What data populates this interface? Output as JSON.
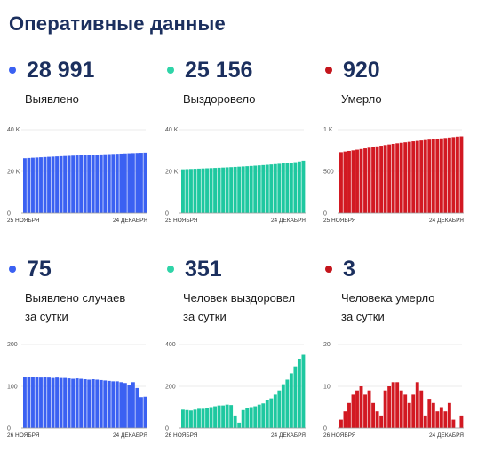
{
  "title": "Оперативные данные",
  "colors": {
    "blue": "#3b61f2",
    "teal": "#1ec8a0",
    "red": "#d21922"
  },
  "panels": [
    {
      "value": "28 991",
      "label": [
        "Выявлено"
      ],
      "color": "#3b61f2",
      "dot": "#3b61f2"
    },
    {
      "value": "25 156",
      "label": [
        "Выздоровело"
      ],
      "color": "#1ec8a0",
      "dot": "#2fd4a8"
    },
    {
      "value": "920",
      "label": [
        "Умерло"
      ],
      "color": "#d21922",
      "dot": "#c4151c"
    },
    {
      "value": "75",
      "label": [
        "Выявлено случаев",
        "за сутки"
      ],
      "color": "#3b61f2",
      "dot": "#3b61f2"
    },
    {
      "value": "351",
      "label": [
        "Человек выздоровел",
        "за сутки"
      ],
      "color": "#1ec8a0",
      "dot": "#2fd4a8"
    },
    {
      "value": "3",
      "label": [
        "Человека умерло",
        "за сутки"
      ],
      "color": "#d21922",
      "dot": "#c4151c"
    }
  ],
  "chart_data": [
    {
      "type": "bar",
      "yticks": [
        "40 K",
        "20 K",
        "0"
      ],
      "ylim": [
        0,
        40000
      ],
      "x_start": "25 НОЯБРЯ",
      "x_end": "24 ДЕКАБРЯ",
      "values": [
        26300,
        26420,
        26540,
        26650,
        26760,
        26870,
        26980,
        27080,
        27180,
        27280,
        27370,
        27460,
        27550,
        27640,
        27730,
        27810,
        27890,
        27970,
        28050,
        28130,
        28210,
        28290,
        28370,
        28450,
        28530,
        28610,
        28690,
        28770,
        28850,
        28920,
        28991
      ]
    },
    {
      "type": "bar",
      "yticks": [
        "40 K",
        "20 K",
        "0"
      ],
      "ylim": [
        0,
        40000
      ],
      "x_start": "25 НОЯБРЯ",
      "x_end": "24 ДЕКАБРЯ",
      "values": [
        21000,
        21080,
        21160,
        21240,
        21320,
        21400,
        21480,
        21570,
        21660,
        21750,
        21840,
        21940,
        22040,
        22150,
        22260,
        22380,
        22500,
        22620,
        22760,
        22900,
        23040,
        23190,
        23340,
        23500,
        23660,
        23830,
        24000,
        24200,
        24430,
        24780,
        25156
      ]
    },
    {
      "type": "bar",
      "yticks": [
        "1 K",
        "500",
        "0"
      ],
      "ylim": [
        0,
        1000
      ],
      "x_start": "25 НОЯБРЯ",
      "x_end": "24 ДЕКАБРЯ",
      "values": [
        730,
        738,
        745,
        752,
        760,
        768,
        776,
        784,
        792,
        800,
        808,
        816,
        823,
        830,
        837,
        843,
        849,
        855,
        861,
        866,
        871,
        876,
        881,
        886,
        891,
        896,
        901,
        906,
        911,
        917,
        920
      ]
    },
    {
      "type": "bar",
      "yticks": [
        "200",
        "100",
        "0"
      ],
      "ylim": [
        0,
        200
      ],
      "x_start": "26 НОЯБРЯ",
      "x_end": "24 ДЕКАБРЯ",
      "values": [
        123,
        122,
        123,
        122,
        121,
        122,
        121,
        120,
        121,
        120,
        120,
        119,
        118,
        119,
        118,
        117,
        116,
        117,
        116,
        115,
        114,
        113,
        112,
        112,
        110,
        108,
        104,
        110,
        96,
        74,
        75
      ]
    },
    {
      "type": "bar",
      "yticks": [
        "400",
        "200",
        "0"
      ],
      "ylim": [
        0,
        400
      ],
      "x_start": "26 НОЯБРЯ",
      "x_end": "24 ДЕКАБРЯ",
      "values": [
        88,
        86,
        84,
        88,
        92,
        92,
        96,
        100,
        104,
        108,
        108,
        112,
        110,
        60,
        26,
        86,
        96,
        100,
        104,
        112,
        118,
        132,
        142,
        160,
        180,
        210,
        232,
        262,
        295,
        332,
        351
      ]
    },
    {
      "type": "bar",
      "yticks": [
        "20",
        "10",
        "0"
      ],
      "ylim": [
        0,
        20
      ],
      "x_start": "26 НОЯБРЯ",
      "x_end": "24 ДЕКАБРЯ",
      "values": [
        2,
        4,
        6,
        8,
        9,
        10,
        8,
        9,
        6,
        4,
        3,
        9,
        10,
        11,
        11,
        9,
        8,
        6,
        8,
        11,
        9,
        3,
        7,
        6,
        4,
        5,
        4,
        6,
        2,
        0,
        3
      ]
    }
  ]
}
